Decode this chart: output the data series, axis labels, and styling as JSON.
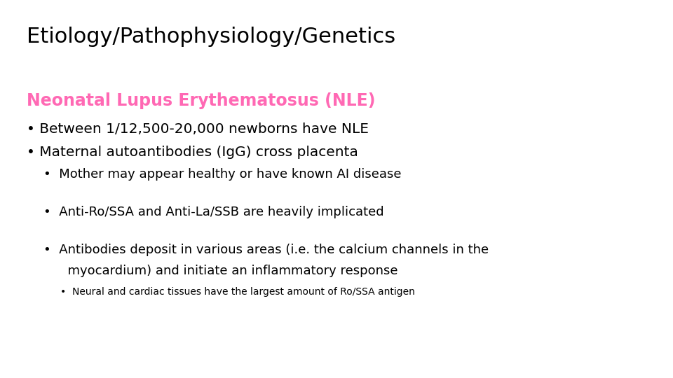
{
  "title": "Etiology/Pathophysiology/Genetics",
  "title_color": "#000000",
  "title_fontsize": 22,
  "background_color": "#ffffff",
  "subtitle": "Neonatal Lupus Erythematosus (NLE)",
  "subtitle_color": "#ff69b4",
  "subtitle_fontsize": 17,
  "bullet1": "• Between 1/12,500-20,000 newborns have NLE",
  "bullet2": "• Maternal autoantibodies (IgG) cross placenta",
  "sub_bullet1": "•  Mother may appear healthy or have known AI disease",
  "sub_bullet2": "•  Anti-Ro/SSA and Anti-La/SSB are heavily implicated",
  "sub_bullet3a": "•  Antibodies deposit in various areas (i.e. the calcium channels in the",
  "sub_bullet3b": "      myocardium) and initiate an inflammatory response",
  "sub_sub_bullet1": "•  Neural and cardiac tissues have the largest amount of Ro/SSA antigen",
  "bullet_fontsize": 14.5,
  "sub_bullet_fontsize": 13,
  "sub_sub_bullet_fontsize": 10,
  "text_color": "#000000",
  "font_family": "DejaVu Sans"
}
